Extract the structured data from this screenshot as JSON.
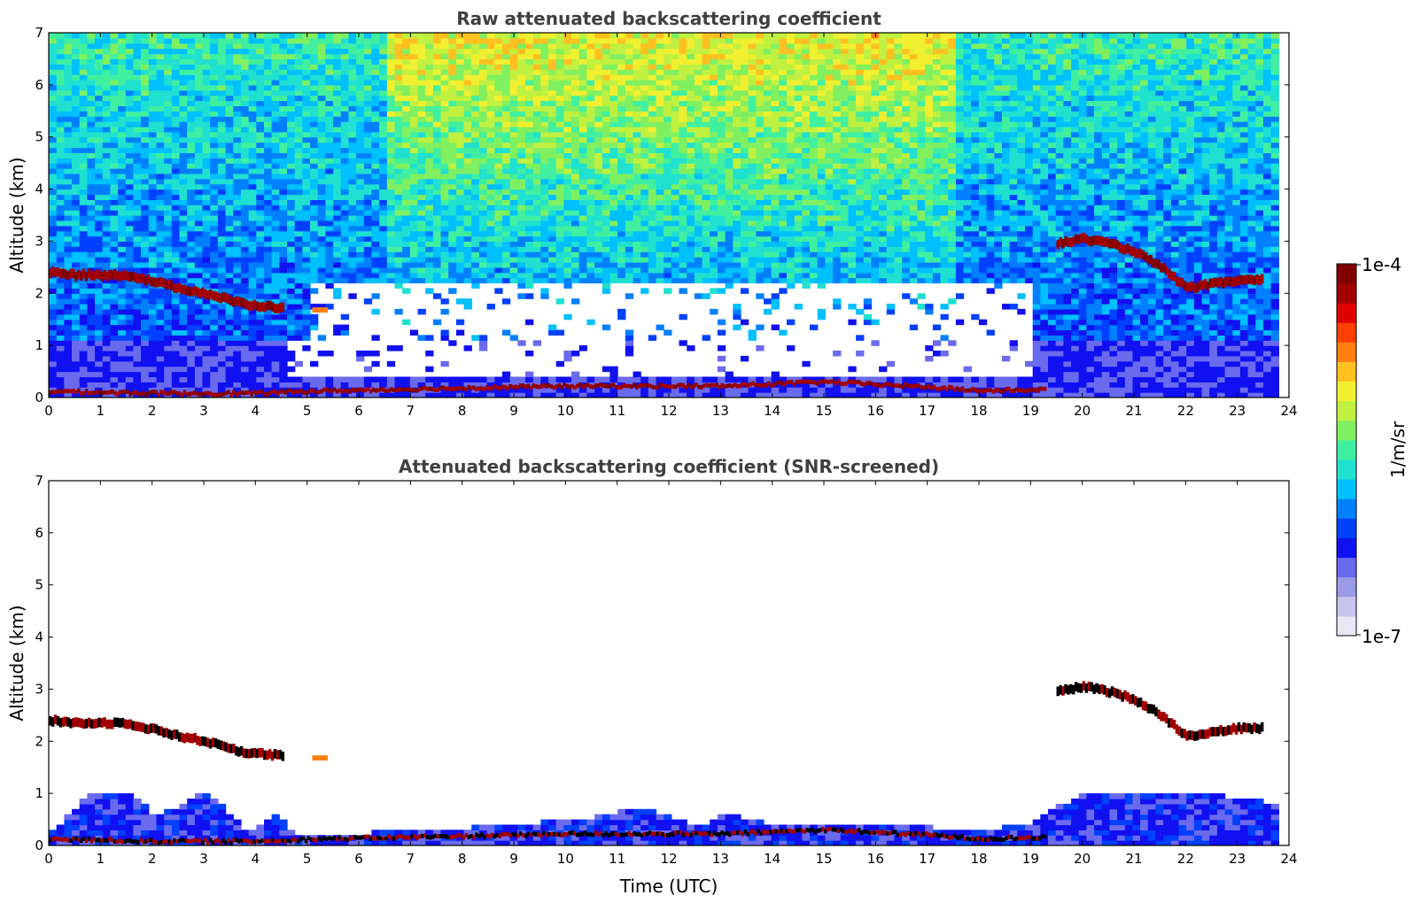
{
  "chart_data": [
    {
      "type": "heatmap",
      "title": "Raw attenuated backscattering coefficient",
      "xlabel": "",
      "ylabel": "Altitude (km)",
      "xlim": [
        0,
        24
      ],
      "ylim": [
        0,
        7
      ],
      "xticks": [
        "0",
        "1",
        "2",
        "3",
        "4",
        "5",
        "6",
        "7",
        "8",
        "9",
        "10",
        "11",
        "12",
        "13",
        "14",
        "15",
        "16",
        "17",
        "18",
        "19",
        "20",
        "21",
        "22",
        "23",
        "24"
      ],
      "yticks": [
        "0",
        "1",
        "2",
        "3",
        "4",
        "5",
        "6",
        "7"
      ],
      "data_extent_hours": [
        0,
        23.8
      ],
      "features": {
        "surface_layer": [
          [
            0,
            0.12
          ],
          [
            2,
            0.08
          ],
          [
            4,
            0.08
          ],
          [
            5,
            0.12
          ],
          [
            8,
            0.18
          ],
          [
            10,
            0.22
          ],
          [
            12,
            0.22
          ],
          [
            13,
            0.22
          ],
          [
            15,
            0.3
          ],
          [
            17,
            0.2
          ],
          [
            18,
            0.13
          ],
          [
            19.3,
            0.15
          ]
        ],
        "early_cloud": [
          [
            0,
            2.4
          ],
          [
            0.5,
            2.35
          ],
          [
            1.5,
            2.35
          ],
          [
            2.5,
            2.1
          ],
          [
            3.0,
            2.0
          ],
          [
            3.8,
            1.78
          ],
          [
            4.5,
            1.72
          ]
        ],
        "late_cloud": [
          [
            19.5,
            2.95
          ],
          [
            20.0,
            3.05
          ],
          [
            20.5,
            2.95
          ],
          [
            21.0,
            2.8
          ],
          [
            21.5,
            2.5
          ],
          [
            22.0,
            2.1
          ],
          [
            23.0,
            2.25
          ],
          [
            23.5,
            2.25
          ]
        ],
        "small_patch": [
          [
            5.2,
            1.68
          ]
        ]
      },
      "colorbar": {
        "label": "1/m/sr",
        "min": "1e-7",
        "max": "1e-4",
        "scale": "log"
      }
    },
    {
      "type": "heatmap",
      "title": "Attenuated backscattering coefficient (SNR-screened)",
      "xlabel": "Time (UTC)",
      "ylabel": "Altitude (km)",
      "xlim": [
        0,
        24
      ],
      "ylim": [
        0,
        7
      ],
      "xticks": [
        "0",
        "1",
        "2",
        "3",
        "4",
        "5",
        "6",
        "7",
        "8",
        "9",
        "10",
        "11",
        "12",
        "13",
        "14",
        "15",
        "16",
        "17",
        "18",
        "19",
        "20",
        "21",
        "22",
        "23",
        "24"
      ],
      "yticks": [
        "0",
        "1",
        "2",
        "3",
        "4",
        "5",
        "6",
        "7"
      ],
      "data_extent_hours": [
        0,
        23.8
      ],
      "features": {
        "boundary_layer_top": [
          [
            0,
            0.25
          ],
          [
            0.7,
            0.9
          ],
          [
            1.5,
            1.0
          ],
          [
            2.0,
            0.5
          ],
          [
            3.0,
            1.0
          ],
          [
            3.8,
            0.2
          ],
          [
            4.3,
            0.6
          ],
          [
            4.7,
            0.12
          ],
          [
            9,
            0.35
          ],
          [
            10.5,
            0.5
          ],
          [
            11.5,
            0.7
          ],
          [
            12.5,
            0.3
          ],
          [
            13,
            0.55
          ],
          [
            14,
            0.35
          ],
          [
            15,
            0.4
          ],
          [
            18,
            0.25
          ],
          [
            19,
            0.4
          ],
          [
            19.8,
            0.9
          ],
          [
            22,
            1.0
          ],
          [
            23.8,
            0.75
          ]
        ]
      },
      "colorbar": {
        "label": "1/m/sr",
        "min": "1e-7",
        "max": "1e-4",
        "scale": "log"
      }
    }
  ],
  "colorbar": {
    "label": "1/m/sr",
    "max_label": "1e-4",
    "min_label": "1e-7",
    "colors": [
      "#e8e8f4",
      "#c4c4ec",
      "#9a9ae6",
      "#6a6aee",
      "#1010f0",
      "#0040ff",
      "#0080ff",
      "#00c0ff",
      "#20e0d0",
      "#40f0a0",
      "#80f060",
      "#c0f040",
      "#f0f030",
      "#ffc020",
      "#ff8010",
      "#ff4000",
      "#e00000",
      "#a00000",
      "#800000"
    ]
  }
}
